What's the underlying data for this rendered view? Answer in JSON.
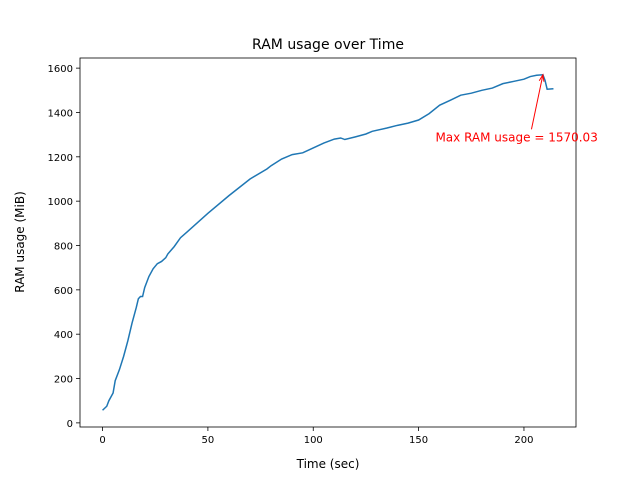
{
  "chart_data": {
    "type": "line",
    "title": "RAM usage over Time",
    "x_label": "Time (sec)",
    "y_label": "RAM usage (MiB)",
    "x": [
      0,
      2,
      3,
      5,
      6,
      8,
      10,
      12,
      14,
      16,
      17,
      18,
      19,
      20,
      22,
      24,
      26,
      28,
      30,
      31,
      34,
      37,
      40,
      50,
      60,
      70,
      78,
      80,
      85,
      90,
      95,
      100,
      105,
      110,
      113,
      115,
      120,
      125,
      128,
      135,
      140,
      145,
      150,
      155,
      160,
      165,
      170,
      175,
      180,
      185,
      190,
      195,
      200,
      203,
      206,
      209,
      210,
      211,
      214
    ],
    "series": [
      {
        "name": "RAM usage",
        "color": "#1f77b4",
        "values": [
          57,
          75,
          100,
          135,
          190,
          240,
          300,
          370,
          450,
          520,
          560,
          570,
          570,
          610,
          660,
          695,
          718,
          728,
          745,
          762,
          795,
          835,
          860,
          945,
          1025,
          1100,
          1145,
          1160,
          1190,
          1210,
          1218,
          1240,
          1262,
          1280,
          1285,
          1278,
          1290,
          1303,
          1315,
          1330,
          1342,
          1352,
          1366,
          1395,
          1433,
          1455,
          1478,
          1487,
          1500,
          1510,
          1530,
          1540,
          1550,
          1562,
          1568,
          1570.03,
          1545,
          1505,
          1507
        ]
      }
    ],
    "xlim": [
      -10.7,
      224.7
    ],
    "ylim": [
      -18.6,
      1645.7
    ],
    "xticks": [
      0,
      50,
      100,
      150,
      200
    ],
    "yticks": [
      0,
      200,
      400,
      600,
      800,
      1000,
      1200,
      1400,
      1600
    ],
    "annotation": {
      "text": "Max RAM usage = 1570.03",
      "color": "#ff0000",
      "xy": [
        209,
        1570.03
      ],
      "xytext": [
        158,
        1270
      ]
    }
  }
}
